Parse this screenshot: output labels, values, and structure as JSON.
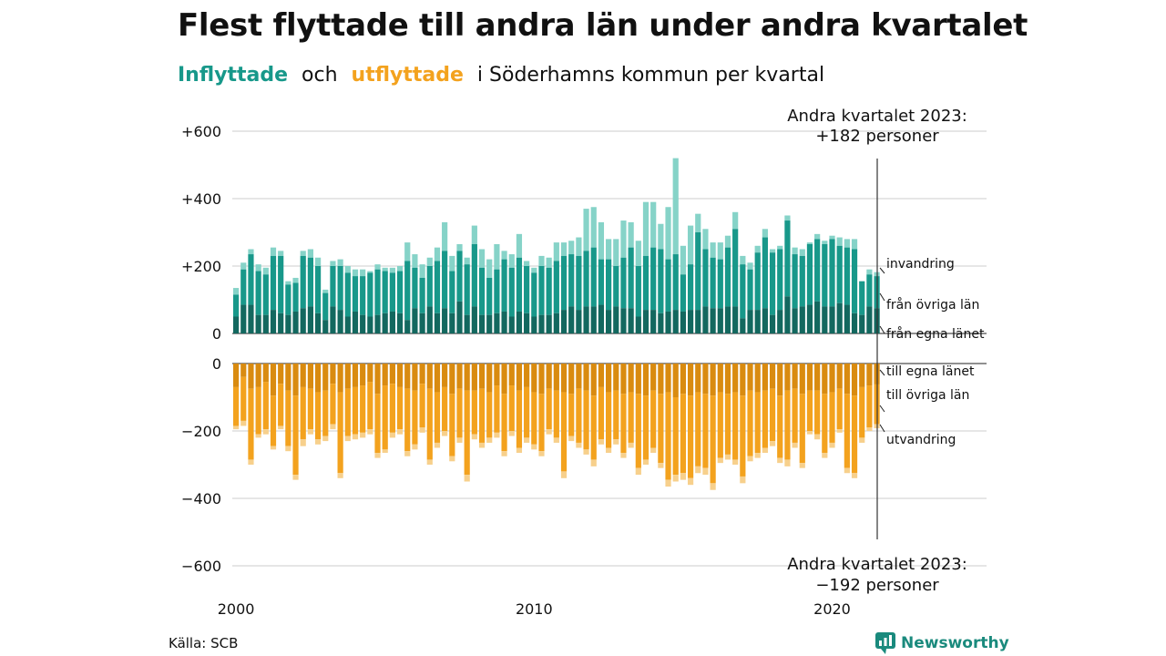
{
  "title": "Flest flyttade till andra län under andra kvartalet",
  "subtitle": {
    "in_word": "Inflyttade",
    "och": "och",
    "out_word": "utflyttade",
    "rest": "i Söderhamns  kommun  per  kvartal"
  },
  "source": "Källa: SCB",
  "logo": {
    "text": "Newsworthy",
    "icon": "newsworthy-logo-icon"
  },
  "colors": {
    "in_egna": "#13685f",
    "in_ovriga": "#18988a",
    "in_invandring": "#86d3c8",
    "out_egna": "#d98b10",
    "out_ovriga": "#f3a21e",
    "out_utvandring": "#f7d08c",
    "grid": "#dddddd"
  },
  "chart_data": {
    "type": "bar",
    "stacked": true,
    "x_range": [
      "2000 Q1",
      "2023 Q2"
    ],
    "x_ticks": [
      "2000",
      "2010",
      "2020"
    ],
    "upper_ylim": [
      0,
      600
    ],
    "upper_yticks": [
      "+600",
      "+400",
      "+200",
      "0"
    ],
    "lower_ylim": [
      -600,
      0
    ],
    "lower_yticks": [
      "0",
      "−200",
      "−400",
      "−600"
    ],
    "grid": true,
    "inflow_totals": [
      135,
      210,
      250,
      205,
      195,
      255,
      245,
      155,
      165,
      245,
      250,
      225,
      130,
      215,
      220,
      200,
      190,
      190,
      185,
      205,
      195,
      195,
      200,
      270,
      235,
      205,
      225,
      255,
      330,
      230,
      265,
      225,
      320,
      250,
      220,
      265,
      245,
      235,
      295,
      215,
      195,
      230,
      225,
      270,
      270,
      275,
      285,
      370,
      375,
      330,
      280,
      280,
      335,
      330,
      275,
      390,
      390,
      325,
      375,
      520,
      260,
      320,
      355,
      310,
      270,
      270,
      290,
      360,
      230,
      210,
      260,
      310,
      250,
      260,
      350,
      255,
      250,
      270,
      295,
      275,
      290,
      285,
      280,
      280,
      155,
      190,
      182
    ],
    "inflow_ovriga": [
      115,
      190,
      235,
      185,
      175,
      230,
      230,
      145,
      150,
      230,
      225,
      200,
      120,
      200,
      200,
      180,
      170,
      170,
      180,
      190,
      185,
      180,
      185,
      215,
      195,
      165,
      200,
      215,
      245,
      185,
      245,
      205,
      265,
      195,
      165,
      190,
      220,
      195,
      225,
      200,
      180,
      200,
      195,
      215,
      230,
      235,
      230,
      245,
      255,
      220,
      220,
      200,
      225,
      255,
      200,
      230,
      255,
      250,
      220,
      235,
      175,
      205,
      300,
      250,
      225,
      220,
      255,
      310,
      205,
      190,
      240,
      285,
      240,
      250,
      335,
      235,
      230,
      265,
      280,
      265,
      280,
      260,
      255,
      250,
      155,
      175,
      170
    ],
    "inflow_egna": [
      50,
      85,
      85,
      55,
      55,
      70,
      60,
      55,
      65,
      75,
      80,
      60,
      40,
      80,
      70,
      50,
      65,
      55,
      50,
      55,
      60,
      65,
      60,
      40,
      75,
      60,
      80,
      60,
      75,
      60,
      95,
      55,
      80,
      55,
      55,
      60,
      65,
      50,
      65,
      60,
      50,
      55,
      55,
      60,
      70,
      80,
      70,
      80,
      80,
      85,
      70,
      80,
      75,
      75,
      50,
      70,
      70,
      60,
      65,
      70,
      65,
      70,
      70,
      80,
      75,
      75,
      80,
      80,
      45,
      70,
      70,
      75,
      55,
      70,
      110,
      75,
      80,
      85,
      95,
      80,
      80,
      90,
      85,
      60,
      55,
      80,
      75
    ],
    "outflow_totals": [
      -195,
      -185,
      -300,
      -220,
      -210,
      -255,
      -195,
      -260,
      -345,
      -245,
      -210,
      -240,
      -230,
      -195,
      -340,
      -230,
      -225,
      -220,
      -210,
      -280,
      -265,
      -220,
      -210,
      -275,
      -255,
      -205,
      -300,
      -250,
      -215,
      -290,
      -235,
      -350,
      -225,
      -250,
      -235,
      -220,
      -275,
      -215,
      -265,
      -235,
      -255,
      -275,
      -210,
      -235,
      -340,
      -230,
      -250,
      -270,
      -305,
      -240,
      -265,
      -240,
      -280,
      -250,
      -330,
      -300,
      -265,
      -310,
      -365,
      -350,
      -345,
      -360,
      -325,
      -330,
      -375,
      -295,
      -285,
      -300,
      -355,
      -290,
      -280,
      -265,
      -245,
      -295,
      -305,
      -250,
      -310,
      -210,
      -225,
      -280,
      -250,
      -205,
      -325,
      -340,
      -235,
      -200,
      -192
    ],
    "outflow_until_ovriga": [
      -185,
      -170,
      -285,
      -210,
      -195,
      -245,
      -185,
      -245,
      -330,
      -225,
      -195,
      -225,
      -215,
      -180,
      -325,
      -215,
      -210,
      -205,
      -195,
      -265,
      -255,
      -205,
      -195,
      -260,
      -240,
      -190,
      -285,
      -235,
      -200,
      -275,
      -220,
      -330,
      -210,
      -235,
      -220,
      -205,
      -260,
      -200,
      -250,
      -220,
      -240,
      -260,
      -195,
      -220,
      -320,
      -215,
      -235,
      -255,
      -285,
      -225,
      -250,
      -225,
      -265,
      -235,
      -310,
      -285,
      -250,
      -295,
      -345,
      -330,
      -325,
      -340,
      -305,
      -310,
      -355,
      -280,
      -270,
      -285,
      -335,
      -275,
      -265,
      -250,
      -230,
      -280,
      -285,
      -235,
      -295,
      -200,
      -210,
      -265,
      -235,
      -195,
      -310,
      -325,
      -220,
      -190,
      -180
    ],
    "outflow_egna": [
      -70,
      -40,
      -75,
      -70,
      -55,
      -95,
      -60,
      -80,
      -95,
      -70,
      -75,
      -85,
      -80,
      -60,
      -85,
      -75,
      -70,
      -65,
      -55,
      -90,
      -65,
      -60,
      -70,
      -75,
      -80,
      -60,
      -75,
      -85,
      -70,
      -90,
      -75,
      -80,
      -80,
      -75,
      -85,
      -65,
      -90,
      -65,
      -80,
      -70,
      -85,
      -90,
      -75,
      -80,
      -85,
      -90,
      -75,
      -80,
      -95,
      -70,
      -85,
      -80,
      -90,
      -85,
      -90,
      -95,
      -80,
      -90,
      -85,
      -100,
      -90,
      -95,
      -85,
      -90,
      -95,
      -85,
      -90,
      -85,
      -95,
      -80,
      -85,
      -80,
      -75,
      -95,
      -80,
      -75,
      -90,
      -80,
      -80,
      -90,
      -85,
      -75,
      -90,
      -95,
      -70,
      -65,
      -62
    ],
    "annotations": {
      "top": [
        "Andra kvartalet 2023:",
        "+182 personer"
      ],
      "bottom": [
        "Andra kvartalet 2023:",
        "−192 personer"
      ]
    },
    "legend_labels": {
      "invandring": "invandring",
      "fran_ovriga": "från övriga län",
      "fran_egna": "från egna länet",
      "till_egna": "till egna länet",
      "till_ovriga": "till övriga län",
      "utvandring": "utvandring"
    }
  }
}
